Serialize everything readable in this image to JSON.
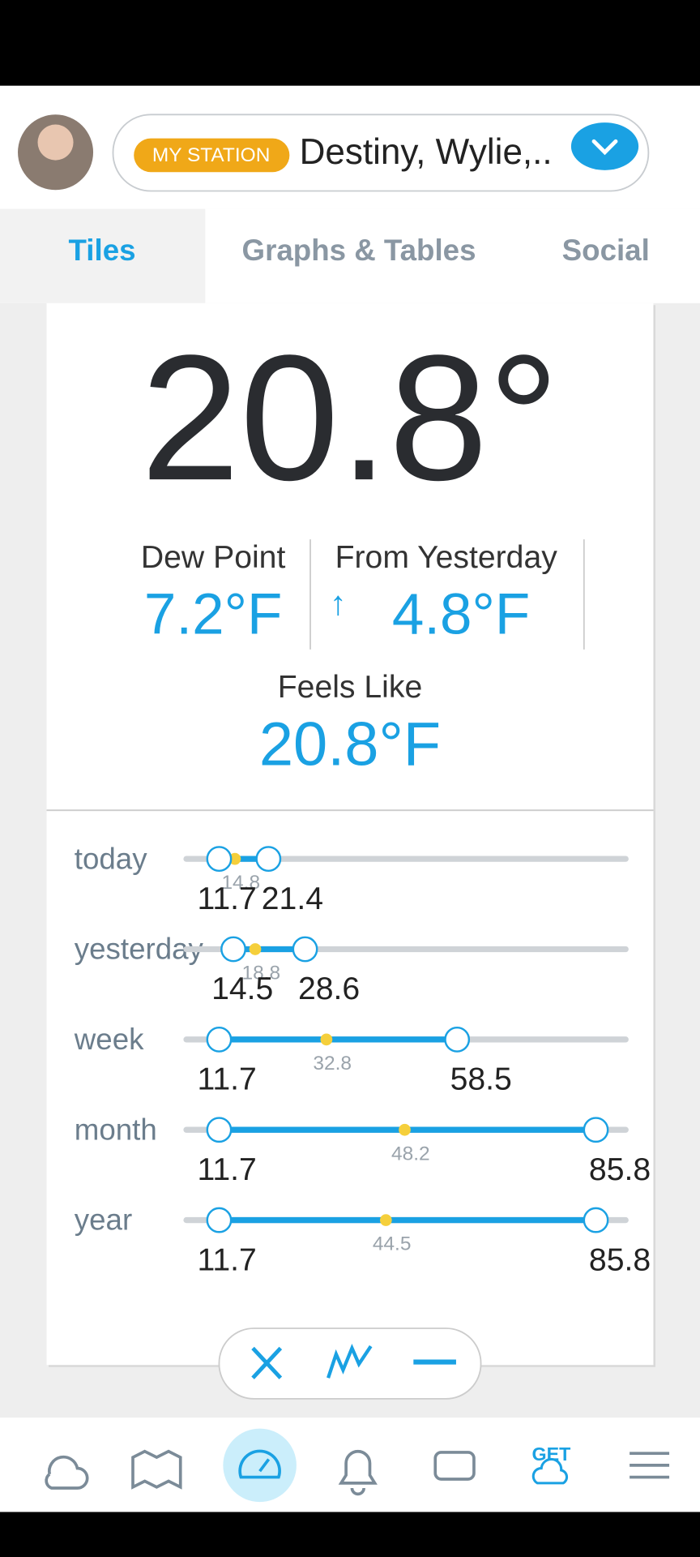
{
  "header": {
    "badge": "MY STATION",
    "station": "Destiny, Wylie,.."
  },
  "tabs": [
    "Tiles",
    "Graphs & Tables",
    "Social"
  ],
  "current": {
    "temperature": "20.8°",
    "dew_point_label": "Dew Point",
    "dew_point": "7.2°F",
    "from_yesterday_label": "From Yesterday",
    "from_yesterday_arrow": "↑",
    "from_yesterday": "4.8°F",
    "feels_like_label": "Feels Like",
    "feels_like": "20.8°F"
  },
  "ranges": [
    {
      "period": "today",
      "low": 11.7,
      "average": 14.8,
      "high": 21.4
    },
    {
      "period": "yesterday",
      "low": 14.5,
      "average": 18.8,
      "high": 28.6
    },
    {
      "period": "week",
      "low": 11.7,
      "average": 32.8,
      "high": 58.5
    },
    {
      "period": "month",
      "low": 11.7,
      "average": 48.2,
      "high": 85.8
    },
    {
      "period": "year",
      "low": 11.7,
      "average": 44.5,
      "high": 85.8
    }
  ],
  "nav": {
    "get": "GET"
  }
}
